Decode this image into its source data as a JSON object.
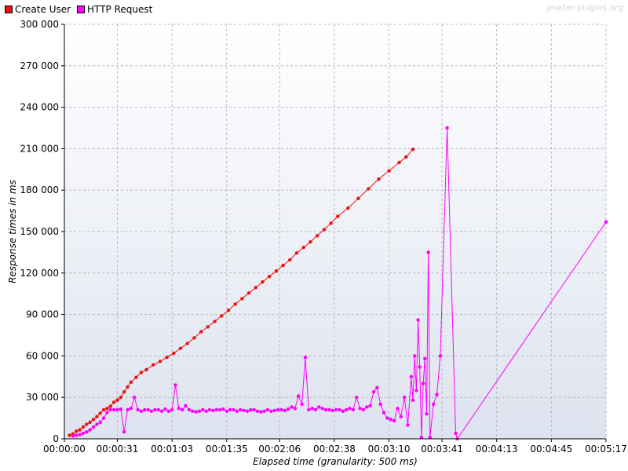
{
  "watermark": "jmeter-plugins.org",
  "legend": [
    {
      "label": "Create User",
      "color": "#ee1111"
    },
    {
      "label": "HTTP Request",
      "color": "#ff00ff"
    }
  ],
  "chart_data": {
    "type": "line",
    "xlabel": "Elapsed time (granularity: 500 ms)",
    "ylabel": "Response times in ms",
    "xlim": [
      0,
      317
    ],
    "ylim": [
      0,
      300000
    ],
    "grid": true,
    "legend_position": "top-left",
    "x_ticks": [
      {
        "v": 0,
        "label": "00:00:00"
      },
      {
        "v": 31,
        "label": "00:00:31"
      },
      {
        "v": 63,
        "label": "00:01:03"
      },
      {
        "v": 95,
        "label": "00:01:35"
      },
      {
        "v": 126,
        "label": "00:02:06"
      },
      {
        "v": 158,
        "label": "00:02:38"
      },
      {
        "v": 190,
        "label": "00:03:10"
      },
      {
        "v": 221,
        "label": "00:03:41"
      },
      {
        "v": 253,
        "label": "00:04:13"
      },
      {
        "v": 285,
        "label": "00:04:45"
      },
      {
        "v": 317,
        "label": "00:05:17"
      }
    ],
    "y_ticks": [
      {
        "v": 0,
        "label": "0"
      },
      {
        "v": 30000,
        "label": "30 000"
      },
      {
        "v": 60000,
        "label": "60 000"
      },
      {
        "v": 90000,
        "label": "90 000"
      },
      {
        "v": 120000,
        "label": "120 000"
      },
      {
        "v": 150000,
        "label": "150 000"
      },
      {
        "v": 180000,
        "label": "180 000"
      },
      {
        "v": 210000,
        "label": "210 000"
      },
      {
        "v": 240000,
        "label": "240 000"
      },
      {
        "v": 270000,
        "label": "270 000"
      },
      {
        "v": 300000,
        "label": "300 000"
      }
    ],
    "series": [
      {
        "name": "Create User",
        "color": "#ee1111",
        "points": [
          [
            3,
            2500
          ],
          [
            5,
            3500
          ],
          [
            7,
            5500
          ],
          [
            9,
            6500
          ],
          [
            11,
            8500
          ],
          [
            13,
            10500
          ],
          [
            15,
            12000
          ],
          [
            17,
            14000
          ],
          [
            19,
            16000
          ],
          [
            21,
            18500
          ],
          [
            23,
            21000
          ],
          [
            25,
            22000
          ],
          [
            27,
            23500
          ],
          [
            29,
            26500
          ],
          [
            31,
            28000
          ],
          [
            33,
            30000
          ],
          [
            35,
            34000
          ],
          [
            37,
            37500
          ],
          [
            39,
            41000
          ],
          [
            42,
            44500
          ],
          [
            45,
            48000
          ],
          [
            48,
            50000
          ],
          [
            52,
            53500
          ],
          [
            56,
            56000
          ],
          [
            60,
            59000
          ],
          [
            64,
            62000
          ],
          [
            68,
            65500
          ],
          [
            72,
            69000
          ],
          [
            76,
            73000
          ],
          [
            80,
            77500
          ],
          [
            84,
            81000
          ],
          [
            88,
            85000
          ],
          [
            92,
            89000
          ],
          [
            96,
            93000
          ],
          [
            100,
            97500
          ],
          [
            104,
            101500
          ],
          [
            108,
            105500
          ],
          [
            112,
            109500
          ],
          [
            116,
            113500
          ],
          [
            120,
            117500
          ],
          [
            124,
            121500
          ],
          [
            128,
            125500
          ],
          [
            132,
            129500
          ],
          [
            136,
            134500
          ],
          [
            140,
            138500
          ],
          [
            144,
            142500
          ],
          [
            148,
            147000
          ],
          [
            152,
            151500
          ],
          [
            156,
            156000
          ],
          [
            160,
            161000
          ],
          [
            166,
            167000
          ],
          [
            172,
            174000
          ],
          [
            178,
            181000
          ],
          [
            184,
            188000
          ],
          [
            190,
            194000
          ],
          [
            196,
            200000
          ],
          [
            200,
            204000
          ],
          [
            204,
            209500
          ]
        ]
      },
      {
        "name": "HTTP Request",
        "color": "#ff00ff",
        "points": [
          [
            5,
            2000
          ],
          [
            7,
            2500
          ],
          [
            9,
            3000
          ],
          [
            11,
            4000
          ],
          [
            13,
            5000
          ],
          [
            15,
            6500
          ],
          [
            17,
            8500
          ],
          [
            19,
            10500
          ],
          [
            21,
            12000
          ],
          [
            23,
            15000
          ],
          [
            25,
            19000
          ],
          [
            27,
            21000
          ],
          [
            29,
            21000
          ],
          [
            31,
            21000
          ],
          [
            33,
            21500
          ],
          [
            35,
            5000
          ],
          [
            37,
            21000
          ],
          [
            39,
            22000
          ],
          [
            41,
            30000
          ],
          [
            43,
            21000
          ],
          [
            45,
            20000
          ],
          [
            47,
            21000
          ],
          [
            49,
            21000
          ],
          [
            51,
            20000
          ],
          [
            53,
            21000
          ],
          [
            55,
            21000
          ],
          [
            57,
            20000
          ],
          [
            59,
            21500
          ],
          [
            61,
            20000
          ],
          [
            63,
            21000
          ],
          [
            65,
            39000
          ],
          [
            67,
            22000
          ],
          [
            69,
            21000
          ],
          [
            71,
            24000
          ],
          [
            73,
            21000
          ],
          [
            75,
            20000
          ],
          [
            77,
            19500
          ],
          [
            79,
            20000
          ],
          [
            81,
            21000
          ],
          [
            83,
            20000
          ],
          [
            85,
            21000
          ],
          [
            87,
            20500
          ],
          [
            89,
            21000
          ],
          [
            91,
            21000
          ],
          [
            93,
            21500
          ],
          [
            95,
            20000
          ],
          [
            97,
            21000
          ],
          [
            99,
            21000
          ],
          [
            101,
            20000
          ],
          [
            103,
            21000
          ],
          [
            105,
            20500
          ],
          [
            107,
            20000
          ],
          [
            109,
            21000
          ],
          [
            111,
            21000
          ],
          [
            113,
            20000
          ],
          [
            115,
            19500
          ],
          [
            117,
            20000
          ],
          [
            119,
            21000
          ],
          [
            121,
            20000
          ],
          [
            123,
            20500
          ],
          [
            125,
            21000
          ],
          [
            127,
            21000
          ],
          [
            129,
            20500
          ],
          [
            131,
            21500
          ],
          [
            133,
            23000
          ],
          [
            135,
            22000
          ],
          [
            137,
            31000
          ],
          [
            139,
            25000
          ],
          [
            141,
            59000
          ],
          [
            143,
            21000
          ],
          [
            145,
            22000
          ],
          [
            147,
            21000
          ],
          [
            149,
            23000
          ],
          [
            151,
            22000
          ],
          [
            153,
            21000
          ],
          [
            155,
            21000
          ],
          [
            157,
            20500
          ],
          [
            159,
            21000
          ],
          [
            161,
            21000
          ],
          [
            163,
            20000
          ],
          [
            165,
            21000
          ],
          [
            167,
            22000
          ],
          [
            169,
            21000
          ],
          [
            171,
            30000
          ],
          [
            173,
            22000
          ],
          [
            175,
            21000
          ],
          [
            177,
            23000
          ],
          [
            179,
            24000
          ],
          [
            181,
            34000
          ],
          [
            183,
            37000
          ],
          [
            185,
            25000
          ],
          [
            187,
            19000
          ],
          [
            189,
            15000
          ],
          [
            191,
            14000
          ],
          [
            193,
            13000
          ],
          [
            195,
            22000
          ],
          [
            197,
            16000
          ],
          [
            199,
            30000
          ],
          [
            201,
            10000
          ],
          [
            203,
            45000
          ],
          [
            204,
            28000
          ],
          [
            205,
            60000
          ],
          [
            206,
            35000
          ],
          [
            207,
            86000
          ],
          [
            208,
            52000
          ],
          [
            209,
            1000
          ],
          [
            210,
            40000
          ],
          [
            211,
            58000
          ],
          [
            212,
            18000
          ],
          [
            213,
            135000
          ],
          [
            214,
            1000
          ],
          [
            216,
            25000
          ],
          [
            218,
            32000
          ],
          [
            220,
            60000
          ],
          [
            224,
            225000
          ],
          [
            229,
            4000
          ],
          [
            230,
            0
          ],
          [
            317,
            157000
          ]
        ]
      }
    ]
  }
}
